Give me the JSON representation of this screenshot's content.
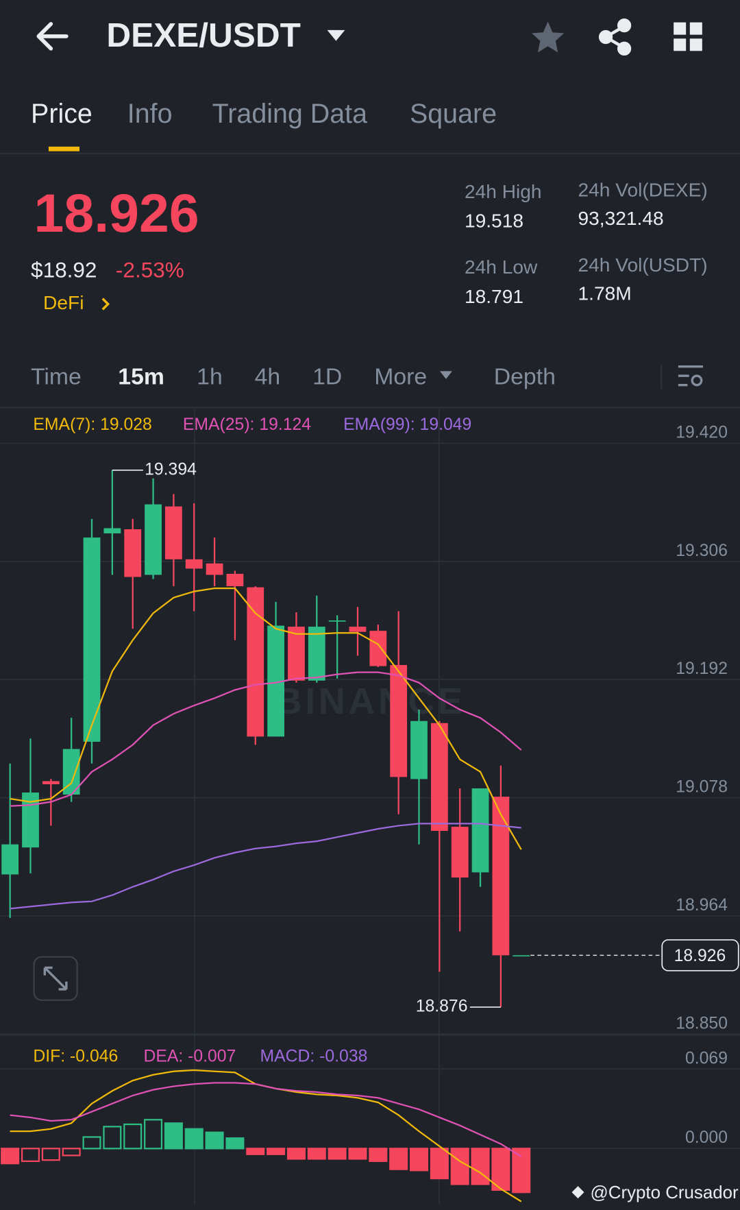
{
  "header": {
    "pair": "DEXE/USDT"
  },
  "tabs": [
    "Price",
    "Info",
    "Trading Data",
    "Square"
  ],
  "price": {
    "last": "18.926",
    "usd": "$18.92",
    "change": "-2.53%",
    "sector": "DeFi"
  },
  "stats": [
    {
      "label": "24h High",
      "value": "19.518"
    },
    {
      "label": "24h Low",
      "value": "18.791"
    },
    {
      "label": "24h Vol(DEXE)",
      "value": "93,321.48"
    },
    {
      "label": "24h Vol(USDT)",
      "value": "1.78M"
    }
  ],
  "intervals": [
    "Time",
    "15m",
    "1h",
    "4h",
    "1D",
    "More",
    "Depth"
  ],
  "watermark": "BINANCE",
  "footer": "@Crypto Crusador",
  "chart_data": [
    {
      "type": "candlestick",
      "grid": true,
      "up_color": "#2ebd85",
      "down_color": "#f6465d",
      "ylim": [
        18.85,
        19.453
      ],
      "yticks": [
        {
          "value": 19.42,
          "label": "19.420"
        },
        19.306,
        19.192,
        19.078,
        18.964,
        {
          "value": 18.85,
          "label": "18.850"
        }
      ],
      "open": [
        19.004,
        19.03,
        19.094,
        19.081,
        19.132,
        19.333,
        19.337,
        19.293,
        19.359,
        19.308,
        19.304,
        19.294,
        19.281,
        19.137,
        19.243,
        19.191,
        19.248,
        19.243,
        19.239,
        19.206,
        19.096,
        19.15,
        19.05,
        19.006,
        19.079,
        18.926
      ],
      "high": [
        19.111,
        19.135,
        19.096,
        19.155,
        19.347,
        19.394,
        19.347,
        19.386,
        19.371,
        19.362,
        19.329,
        19.297,
        19.282,
        19.267,
        19.257,
        19.273,
        19.254,
        19.262,
        19.245,
        19.258,
        19.163,
        19.152,
        19.087,
        19.087,
        19.109,
        18.926
      ],
      "low": [
        18.962,
        19.005,
        19.051,
        19.074,
        19.111,
        19.293,
        19.241,
        19.289,
        19.282,
        19.258,
        19.282,
        19.23,
        19.129,
        19.137,
        19.189,
        19.189,
        19.193,
        19.215,
        19.204,
        19.062,
        19.033,
        18.91,
        18.949,
        18.992,
        18.876,
        18.926
      ],
      "close": [
        19.033,
        19.083,
        19.091,
        19.125,
        19.329,
        19.338,
        19.291,
        19.361,
        19.308,
        19.299,
        19.293,
        19.282,
        19.137,
        19.244,
        19.191,
        19.243,
        19.249,
        19.238,
        19.205,
        19.098,
        19.152,
        19.046,
        19.001,
        19.087,
        18.926,
        18.926
      ],
      "series": [
        {
          "name": "EMA(7): 19.028",
          "color": "#f0b90b",
          "values": [
            19.077,
            19.074,
            19.077,
            19.092,
            19.148,
            19.2,
            19.23,
            19.256,
            19.271,
            19.277,
            19.28,
            19.28,
            19.256,
            19.241,
            19.236,
            19.236,
            19.237,
            19.237,
            19.226,
            19.2,
            19.174,
            19.148,
            19.115,
            19.103,
            19.062,
            19.028
          ]
        },
        {
          "name": "EMA(25): 19.124",
          "color": "#e052b5",
          "values": [
            19.07,
            19.071,
            19.074,
            19.081,
            19.103,
            19.115,
            19.129,
            19.148,
            19.159,
            19.167,
            19.174,
            19.182,
            19.187,
            19.189,
            19.193,
            19.194,
            19.197,
            19.199,
            19.199,
            19.196,
            19.189,
            19.174,
            19.163,
            19.155,
            19.141,
            19.124
          ]
        },
        {
          "name": "EMA(99): 19.049",
          "color": "#9c6ade",
          "values": [
            18.971,
            18.973,
            18.975,
            18.977,
            18.978,
            18.984,
            18.992,
            18.999,
            19.007,
            19.013,
            19.02,
            19.025,
            19.029,
            19.031,
            19.034,
            19.036,
            19.04,
            19.044,
            19.048,
            19.051,
            19.053,
            19.053,
            19.053,
            19.053,
            19.051,
            19.049
          ]
        }
      ]
    },
    {
      "type": "macd",
      "up_color": "#2ebd85",
      "down_color": "#f6465d",
      "ylim": [
        -0.048,
        0.096
      ],
      "yticks": [
        0.069,
        {
          "value": 0,
          "label": "0.000"
        }
      ],
      "series": [
        {
          "name": "DIF: -0.046",
          "color": "#f0b90b",
          "values": [
            0.015,
            0.015,
            0.017,
            0.022,
            0.039,
            0.05,
            0.059,
            0.064,
            0.067,
            0.068,
            0.067,
            0.066,
            0.056,
            0.052,
            0.049,
            0.047,
            0.046,
            0.044,
            0.04,
            0.029,
            0.015,
            0.002,
            -0.011,
            -0.021,
            -0.035,
            -0.046
          ]
        },
        {
          "name": "DEA: -0.007",
          "color": "#e052b5",
          "values": [
            0.029,
            0.027,
            0.024,
            0.025,
            0.032,
            0.039,
            0.046,
            0.051,
            0.054,
            0.056,
            0.057,
            0.057,
            0.056,
            0.052,
            0.05,
            0.049,
            0.047,
            0.046,
            0.044,
            0.039,
            0.034,
            0.027,
            0.02,
            0.012,
            0.004,
            -0.007
          ]
        },
        {
          "name": "MACD: -0.038",
          "color": "#9c6ade",
          "values": [
            -0.013,
            -0.011,
            -0.01,
            -0.006,
            0.01,
            0.019,
            0.021,
            0.025,
            0.022,
            0.017,
            0.014,
            0.009,
            -0.005,
            -0.005,
            -0.009,
            -0.009,
            -0.009,
            -0.009,
            -0.011,
            -0.018,
            -0.019,
            -0.026,
            -0.031,
            -0.031,
            -0.036,
            -0.038
          ]
        }
      ]
    }
  ]
}
